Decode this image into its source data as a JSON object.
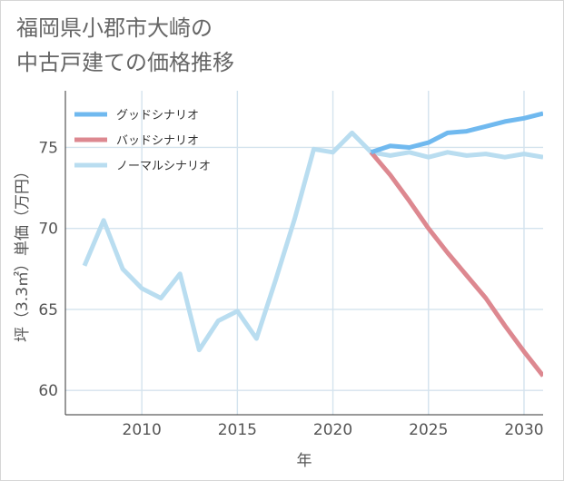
{
  "title_lines": [
    "福岡県小郡市大崎の",
    "中古戸建ての価格推移"
  ],
  "chart_data": {
    "type": "line",
    "xlabel": "年",
    "ylabel": "坪（3.3㎡）単価（万円）",
    "xlim": [
      2006,
      2031
    ],
    "ylim": [
      58.5,
      78.5
    ],
    "xticks": [
      2010,
      2015,
      2020,
      2025,
      2030
    ],
    "yticks": [
      60,
      65,
      70,
      75
    ],
    "grid": true,
    "legend_position": "top-left",
    "series": [
      {
        "name": "グッドシナリオ",
        "color": "#70b9ef",
        "x": [
          2022,
          2023,
          2024,
          2025,
          2026,
          2027,
          2028,
          2029,
          2030,
          2031
        ],
        "y": [
          74.7,
          75.1,
          75.0,
          75.3,
          75.9,
          76.0,
          76.3,
          76.6,
          76.8,
          77.1
        ]
      },
      {
        "name": "バッドシナリオ",
        "color": "#dd8890",
        "x": [
          2022,
          2023,
          2024,
          2025,
          2026,
          2027,
          2028,
          2029,
          2030,
          2031
        ],
        "y": [
          74.7,
          73.3,
          71.7,
          70.0,
          68.5,
          67.1,
          65.7,
          64.0,
          62.4,
          60.9
        ]
      },
      {
        "name": "ノーマルシナリオ",
        "color": "#b9ddf0",
        "x": [
          2007,
          2008,
          2009,
          2010,
          2011,
          2012,
          2013,
          2014,
          2015,
          2016,
          2017,
          2018,
          2019,
          2020,
          2021,
          2022,
          2023,
          2024,
          2025,
          2026,
          2027,
          2028,
          2029,
          2030,
          2031
        ],
        "y": [
          67.7,
          70.5,
          67.5,
          66.3,
          65.7,
          67.2,
          62.5,
          64.3,
          64.9,
          63.2,
          66.8,
          70.6,
          74.9,
          74.7,
          75.9,
          74.7,
          74.5,
          74.7,
          74.4,
          74.7,
          74.5,
          74.6,
          74.4,
          74.6,
          74.4
        ]
      }
    ]
  }
}
